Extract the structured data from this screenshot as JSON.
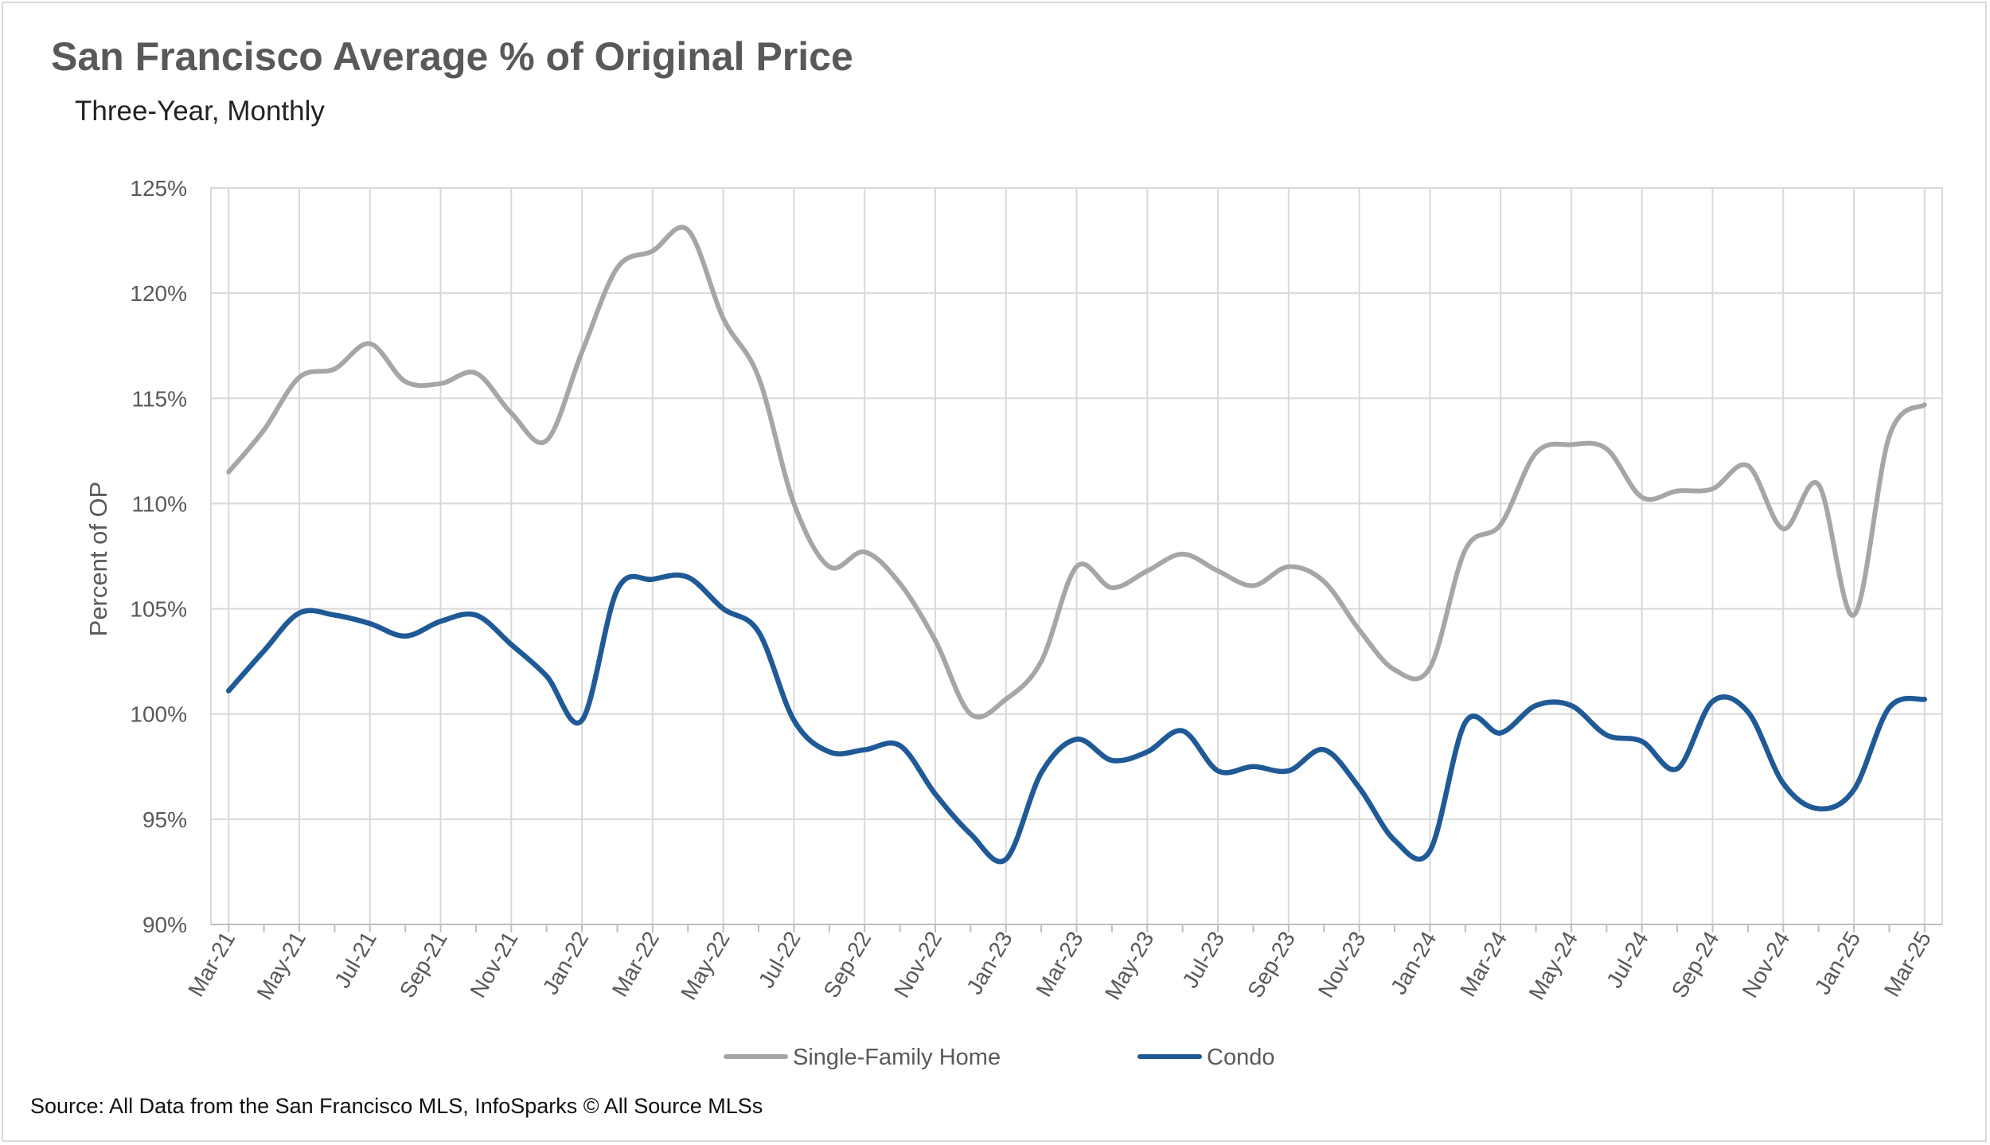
{
  "title": "San Francisco Average % of Original Price",
  "subtitle": "Three-Year, Monthly",
  "source": "Source: All Data from the San Francisco MLS, InfoSparks © All Source MLSs",
  "chart_data": {
    "type": "line",
    "x": [
      "Mar-21",
      "Apr-21",
      "May-21",
      "Jun-21",
      "Jul-21",
      "Aug-21",
      "Sep-21",
      "Oct-21",
      "Nov-21",
      "Dec-21",
      "Jan-22",
      "Feb-22",
      "Mar-22",
      "Apr-22",
      "May-22",
      "Jun-22",
      "Jul-22",
      "Aug-22",
      "Sep-22",
      "Oct-22",
      "Nov-22",
      "Dec-22",
      "Jan-23",
      "Feb-23",
      "Mar-23",
      "Apr-23",
      "May-23",
      "Jun-23",
      "Jul-23",
      "Aug-23",
      "Sep-23",
      "Oct-23",
      "Nov-23",
      "Dec-23",
      "Jan-24",
      "Feb-24",
      "Mar-24",
      "Apr-24",
      "May-24",
      "Jun-24",
      "Jul-24",
      "Aug-24",
      "Sep-24",
      "Oct-24",
      "Nov-24",
      "Dec-24",
      "Jan-25",
      "Feb-25",
      "Mar-25"
    ],
    "tick_labels": [
      "Mar-21",
      "May-21",
      "Jul-21",
      "Sep-21",
      "Nov-21",
      "Jan-22",
      "Mar-22",
      "May-22",
      "Jul-22",
      "Sep-22",
      "Nov-22",
      "Jan-23",
      "Mar-23",
      "May-23",
      "Jul-23",
      "Sep-23",
      "Nov-23",
      "Jan-24",
      "Mar-24",
      "May-24",
      "Jul-24",
      "Sep-24",
      "Nov-24",
      "Jan-25",
      "Mar-25"
    ],
    "series": [
      {
        "name": "Single-Family Home",
        "color": "#a6a6a6",
        "values": [
          111.5,
          113.5,
          116.0,
          116.4,
          117.6,
          115.8,
          115.7,
          116.2,
          114.3,
          113.0,
          117.2,
          121.2,
          122.0,
          123.0,
          118.8,
          116.0,
          110.0,
          107.0,
          107.7,
          106.2,
          103.5,
          100.0,
          100.7,
          102.5,
          107.0,
          106.0,
          106.8,
          107.6,
          106.8,
          106.1,
          107.0,
          106.3,
          104.0,
          102.1,
          102.2,
          107.8,
          109.0,
          112.4,
          112.8,
          112.6,
          110.3,
          110.6,
          110.7,
          111.8,
          108.8,
          110.9,
          104.7,
          113.2,
          114.7
        ]
      },
      {
        "name": "Condo",
        "color": "#1f5a96",
        "values": [
          101.1,
          103.0,
          104.8,
          104.7,
          104.3,
          103.7,
          104.4,
          104.7,
          103.3,
          101.8,
          99.7,
          105.9,
          106.4,
          106.5,
          105.0,
          103.9,
          99.7,
          98.2,
          98.3,
          98.5,
          96.2,
          94.3,
          93.1,
          97.2,
          98.8,
          97.8,
          98.2,
          99.2,
          97.3,
          97.5,
          97.3,
          98.3,
          96.5,
          94.0,
          93.5,
          99.6,
          99.1,
          100.4,
          100.4,
          99.0,
          98.7,
          97.4,
          100.6,
          100.1,
          96.7,
          95.5,
          96.4,
          100.3,
          100.7
        ]
      }
    ],
    "ylabel": "Percent of OP",
    "xlabel": "",
    "ylim": [
      90,
      125
    ],
    "yticks": [
      "90%",
      "95%",
      "100%",
      "105%",
      "110%",
      "115%",
      "120%",
      "125%"
    ],
    "grid": true,
    "legend_position": "bottom"
  }
}
